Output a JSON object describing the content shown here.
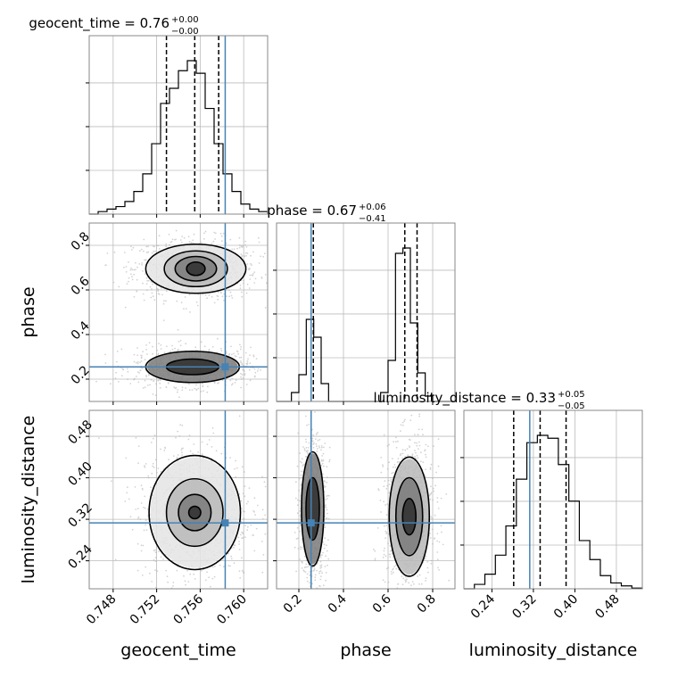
{
  "style": {
    "truth_color": "#4682b4",
    "hist_color": "#000000",
    "grid_color": "#bbbbbb",
    "frame_color": "#888888",
    "point_color": "#b0b0b0"
  },
  "params": [
    {
      "name": "geocent_time",
      "xlabel": "geocent_time",
      "ylabel": "",
      "range": [
        0.7458,
        0.7622
      ],
      "ticks": [
        0.748,
        0.752,
        0.756,
        0.76
      ],
      "tick_labels": [
        "0.748",
        "0.752",
        "0.756",
        "0.760"
      ]
    },
    {
      "name": "phase",
      "xlabel": "phase",
      "ylabel": "phase",
      "range": [
        0.1,
        0.9
      ],
      "ticks": [
        0.2,
        0.4,
        0.6,
        0.8
      ],
      "tick_labels": [
        "0.2",
        "0.4",
        "0.6",
        "0.8"
      ]
    },
    {
      "name": "luminosity_distance",
      "xlabel": "luminosity_distance",
      "ylabel": "luminosity_distance",
      "range": [
        0.186,
        0.53
      ],
      "ticks": [
        0.24,
        0.32,
        0.4,
        0.48
      ],
      "tick_labels": [
        "0.24",
        "0.32",
        "0.40",
        "0.48"
      ]
    }
  ],
  "titles": [
    {
      "param": "geocent_time",
      "prefix": "geocent_time = 0.76",
      "sup": "+0.00",
      "sub": "−0.00"
    },
    {
      "param": "phase",
      "prefix": "phase = 0.67",
      "sup": "+0.06",
      "sub": "−0.41"
    },
    {
      "param": "luminosity_distance",
      "prefix": "luminosity_distance = 0.33",
      "sup": "+0.05",
      "sub": "−0.05"
    }
  ],
  "chart_data": {
    "type": "corner",
    "truths": {
      "geocent_time": 0.7583,
      "phase": 0.255,
      "luminosity_distance": 0.313
    },
    "quantiles": {
      "geocent_time": [
        0.7529,
        0.7555,
        0.7577
      ],
      "phase": [
        0.265,
        0.675,
        0.73
      ],
      "luminosity_distance": [
        0.282,
        0.333,
        0.383
      ]
    },
    "histograms": {
      "geocent_time": {
        "edges_range": [
          0.7458,
          0.7622
        ],
        "counts": [
          0,
          1,
          2,
          3,
          5,
          9,
          16,
          28,
          44,
          50,
          57,
          61,
          56,
          42,
          28,
          16,
          9,
          4,
          2,
          1
        ]
      },
      "phase": {
        "edges_range": [
          0.1,
          0.9
        ],
        "counts": [
          0,
          0,
          0.5,
          1.5,
          4.6,
          3.6,
          1,
          0,
          0,
          0,
          0,
          0,
          0,
          0,
          0.5,
          2.3,
          8.3,
          8.6,
          4.4,
          1.6,
          0.3,
          0,
          0,
          0
        ]
      },
      "luminosity_distance": {
        "edges_range": [
          0.186,
          0.53
        ],
        "counts": [
          0,
          0.3,
          1.0,
          2.3,
          4.3,
          7.5,
          10.0,
          10.5,
          10.3,
          8.5,
          6.0,
          3.3,
          2.0,
          0.9,
          0.4,
          0.2,
          0.05
        ]
      }
    },
    "pairs": [
      {
        "x": "geocent_time",
        "y": "phase",
        "modes": [
          {
            "cx": 0.7556,
            "cy": 0.695,
            "levels": [
              [
                0.00085,
                0.03
              ],
              [
                0.0019,
                0.055
              ],
              [
                0.0029,
                0.08
              ],
              [
                0.0046,
                0.11
              ]
            ]
          },
          {
            "cx": 0.7553,
            "cy": 0.255,
            "levels": [
              [
                0.0024,
                0.035
              ],
              [
                0.0043,
                0.07
              ]
            ]
          }
        ]
      },
      {
        "x": "geocent_time",
        "y": "luminosity_distance",
        "modes": [
          {
            "cx": 0.7555,
            "cy": 0.333,
            "levels": [
              [
                0.00055,
                0.012
              ],
              [
                0.0015,
                0.035
              ],
              [
                0.0026,
                0.065
              ],
              [
                0.0042,
                0.11
              ]
            ]
          }
        ]
      },
      {
        "x": "phase",
        "y": "luminosity_distance",
        "modes": [
          {
            "cx": 0.695,
            "cy": 0.325,
            "levels": [
              [
                0.03,
                0.035
              ],
              [
                0.06,
                0.075
              ],
              [
                0.09,
                0.115
              ]
            ]
          },
          {
            "cx": 0.262,
            "cy": 0.34,
            "levels": [
              [
                0.03,
                0.06
              ],
              [
                0.05,
                0.11
              ]
            ]
          }
        ]
      }
    ]
  }
}
